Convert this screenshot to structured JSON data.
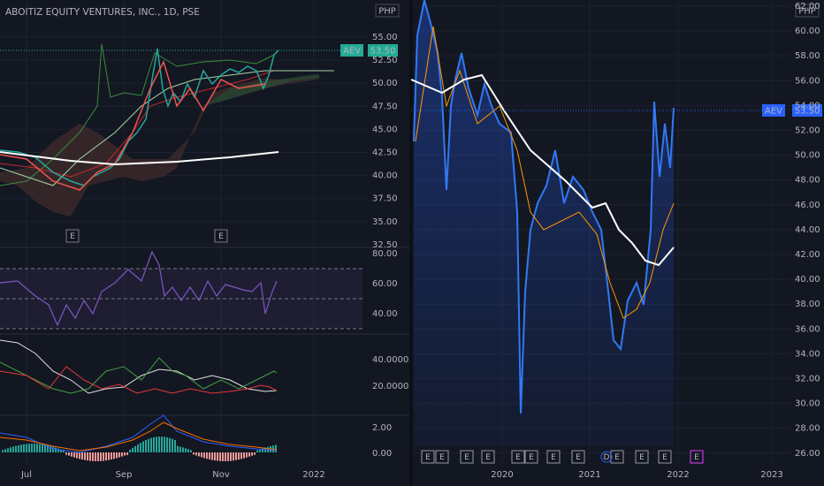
{
  "left_panel": {
    "title": "ABOITIZ EQUITY VENTURES, INC., 1D, PSE",
    "currency": "PHP",
    "ticker": "AEV",
    "last_price": "53.50",
    "price_axis": [
      "55.00",
      "52.50",
      "50.00",
      "47.50",
      "45.00",
      "42.50",
      "40.00",
      "37.50",
      "35.00",
      "32.50"
    ],
    "rsi_axis": [
      "80.00",
      "60.00",
      "40.00"
    ],
    "dmi_axis": [
      "40.0000",
      "20.0000"
    ],
    "macd_axis": [
      "2.00",
      "0.00"
    ],
    "time_axis": [
      "Jul",
      "Sep",
      "Nov",
      "2022"
    ],
    "earnings": [
      "E",
      "E"
    ]
  },
  "right_panel": {
    "currency": "PHP",
    "ticker": "AEV",
    "last_price": "53.50",
    "price_axis": [
      "62.00",
      "60.00",
      "58.00",
      "56.00",
      "54.00",
      "52.00",
      "50.00",
      "48.00",
      "46.00",
      "44.00",
      "42.00",
      "40.00",
      "38.00",
      "36.00",
      "34.00",
      "32.00",
      "30.00",
      "28.00",
      "26.00"
    ],
    "time_axis": [
      "2020",
      "2021",
      "2022",
      "2023"
    ],
    "earnings": [
      "E",
      "E",
      "E",
      "E",
      "E",
      "E",
      "E",
      "E",
      "E",
      "E",
      "E"
    ],
    "dividend": "D",
    "upcoming_earnings": "E"
  }
}
